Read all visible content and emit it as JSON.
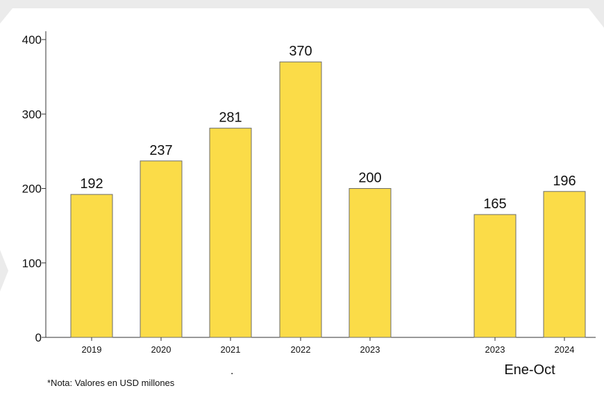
{
  "chart_data": {
    "type": "bar",
    "categories": [
      "2019",
      "2020",
      "2021",
      "2022",
      "2023",
      "2023",
      "2024"
    ],
    "values": [
      192,
      237,
      281,
      370,
      200,
      165,
      196
    ],
    "group_label": "Ene-Oct",
    "group_categories": [
      "2023",
      "2024"
    ],
    "title": "",
    "xlabel": "",
    "ylabel": "",
    "ylim": [
      0,
      400
    ],
    "yticks": [
      "0",
      "100",
      "200",
      "300",
      "400"
    ],
    "grid": false,
    "legend": "none",
    "bar_color": "#FBDC48",
    "bar_edge_color": "#6b6b6b",
    "background_band_color": "#ebebeb",
    "note": "*Nota: Valores en USD millones",
    "stray_mark": "."
  }
}
